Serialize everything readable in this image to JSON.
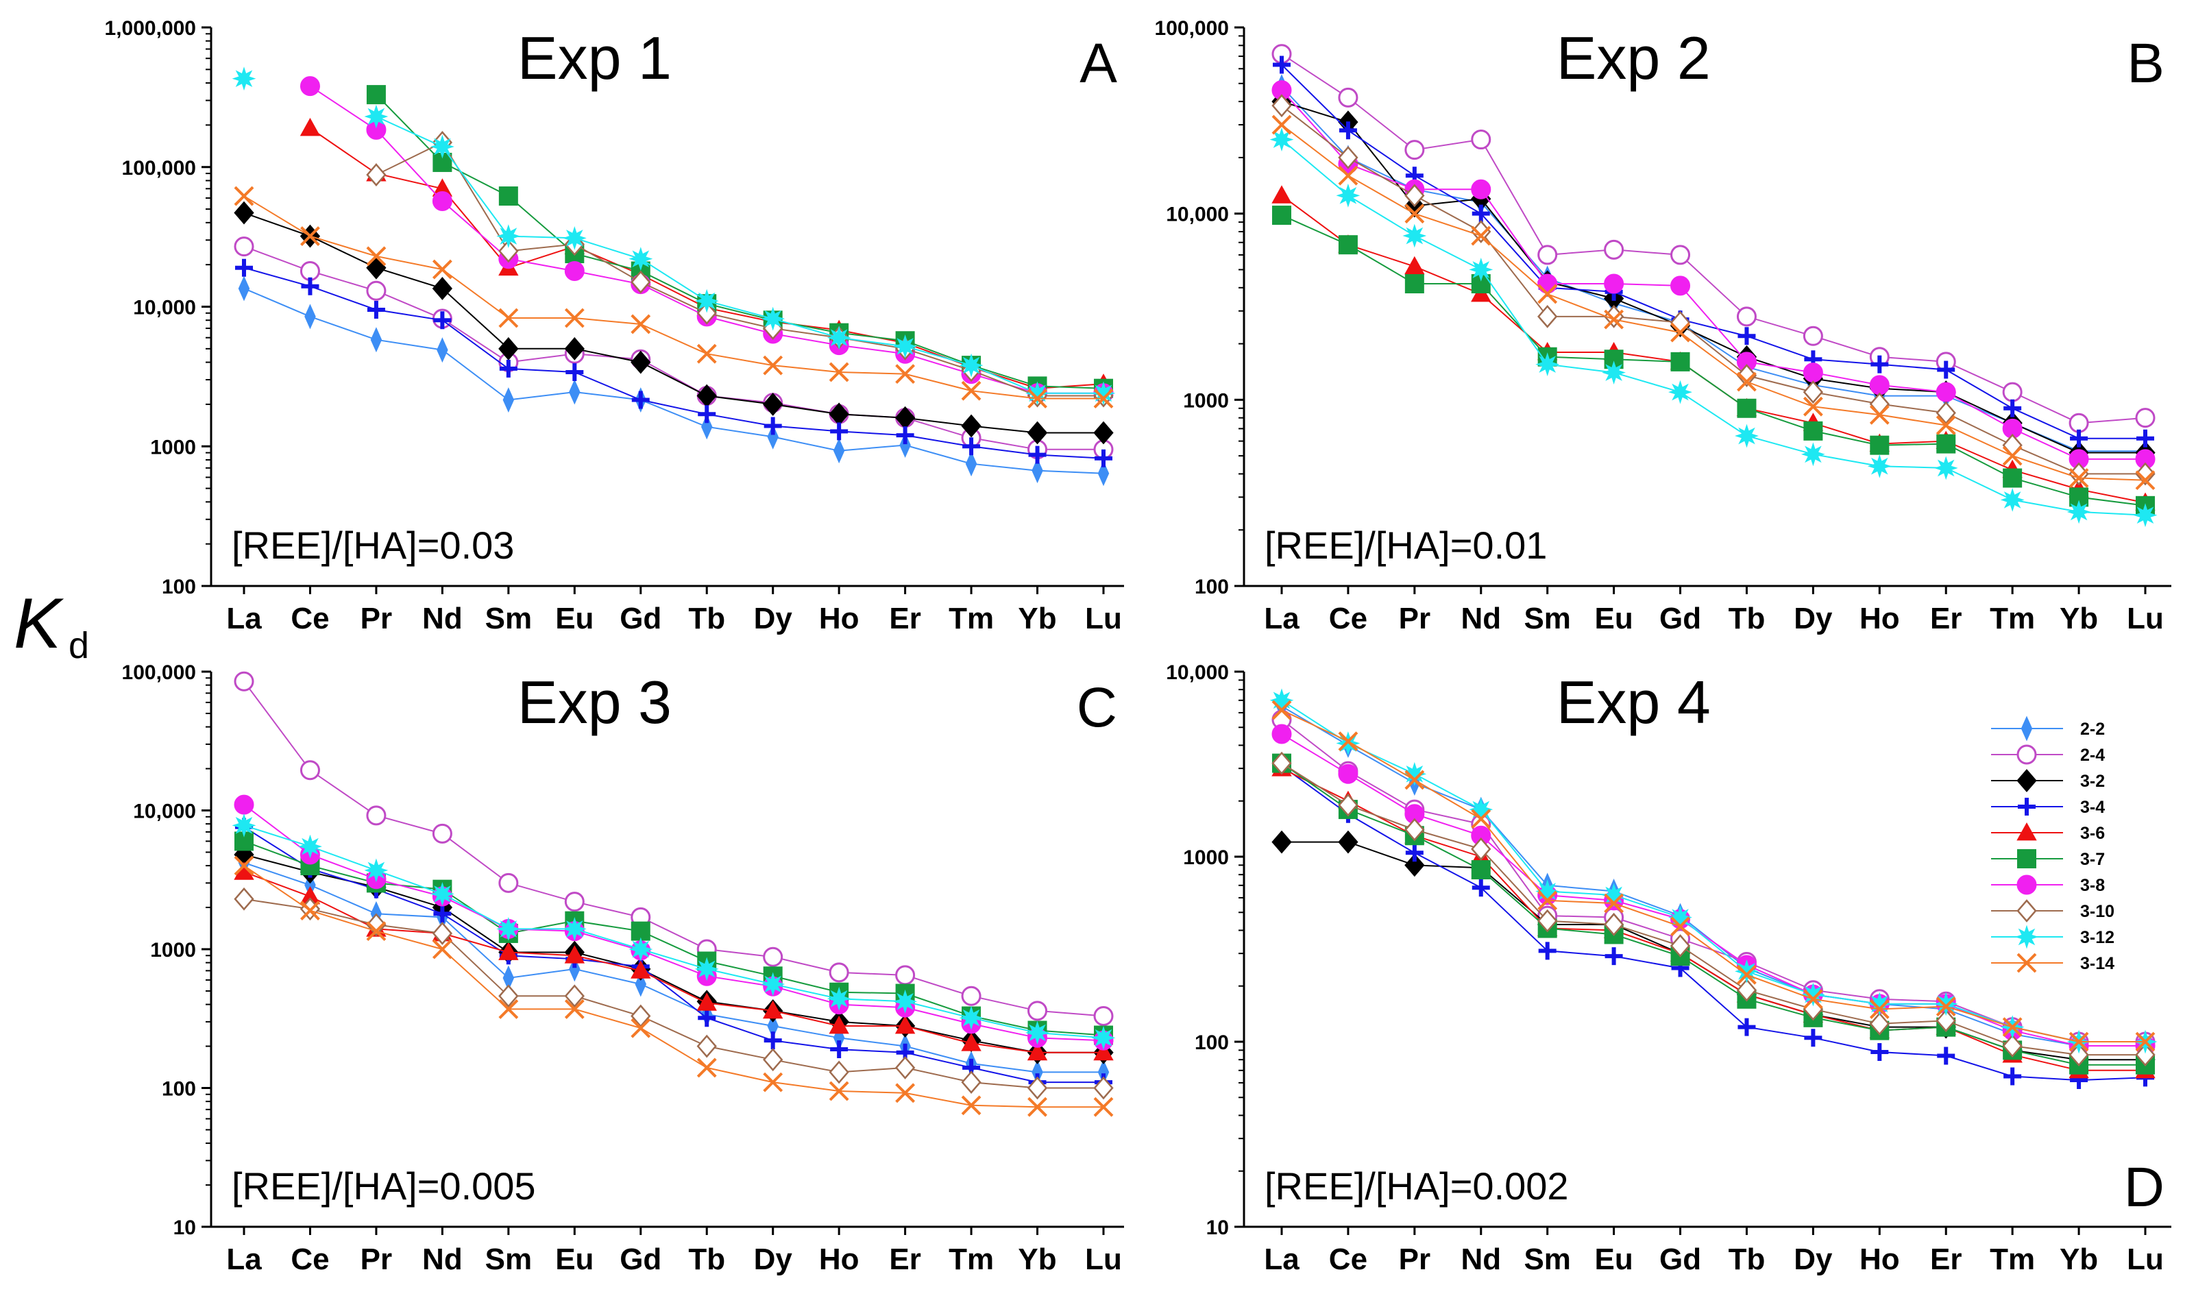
{
  "figure": {
    "ylabel": "K",
    "ylabel_sub": "d"
  },
  "legend": {
    "position": "right, inside panel D",
    "entries": [
      {
        "name": "2-2",
        "color": "#3d8ef5",
        "marker": "diamond-thin",
        "filled": true
      },
      {
        "name": "2-4",
        "color": "#c04ac6",
        "marker": "circle",
        "filled": false
      },
      {
        "name": "3-2",
        "color": "#000000",
        "marker": "diamond",
        "filled": true
      },
      {
        "name": "3-4",
        "color": "#1414e8",
        "marker": "plus",
        "filled": true
      },
      {
        "name": "3-6",
        "color": "#ee1111",
        "marker": "triangle",
        "filled": true
      },
      {
        "name": "3-7",
        "color": "#169b3e",
        "marker": "square",
        "filled": true
      },
      {
        "name": "3-8",
        "color": "#f020f0",
        "marker": "circle",
        "filled": true
      },
      {
        "name": "3-10",
        "color": "#9e6b4e",
        "marker": "diamond",
        "filled": false
      },
      {
        "name": "3-12",
        "color": "#1ee8f2",
        "marker": "star",
        "filled": true
      },
      {
        "name": "3-14",
        "color": "#f47a28",
        "marker": "x",
        "filled": true
      }
    ]
  },
  "chart_data": [
    {
      "type": "line",
      "scale": "log",
      "panel": "A",
      "title": "Exp 1",
      "letter": "A",
      "annotation": "[REE]/[HA]=0.03",
      "ylim": [
        100,
        1000000
      ],
      "yticks": [
        100,
        1000,
        10000,
        100000,
        1000000
      ],
      "ytick_labels": [
        "100",
        "1000",
        "10,000",
        "100,000",
        "1,000,000"
      ],
      "categories": [
        "La",
        "Ce",
        "Pr",
        "Nd",
        "Sm",
        "Eu",
        "Gd",
        "Tb",
        "Dy",
        "Ho",
        "Er",
        "Tm",
        "Yb",
        "Lu"
      ],
      "series": [
        {
          "name": "2-2",
          "values": [
            13500,
            8500,
            5800,
            4900,
            2150,
            2450,
            2150,
            1380,
            1170,
            930,
            1020,
            750,
            670,
            640
          ]
        },
        {
          "name": "2-4",
          "values": [
            27000,
            18000,
            13000,
            8200,
            4000,
            4600,
            4200,
            2300,
            2050,
            1700,
            1600,
            1150,
            950,
            950
          ]
        },
        {
          "name": "3-2",
          "values": [
            47000,
            32000,
            19000,
            13500,
            5000,
            5000,
            4000,
            2300,
            2000,
            1700,
            1600,
            1400,
            1250,
            1250
          ]
        },
        {
          "name": "3-4",
          "values": [
            19000,
            14000,
            9500,
            8000,
            3600,
            3400,
            2150,
            1700,
            1400,
            1280,
            1200,
            1000,
            870,
            820
          ]
        },
        {
          "name": "3-6",
          "values": [
            null,
            190000,
            90000,
            70000,
            19000,
            27000,
            17000,
            9800,
            7800,
            6800,
            5500,
            3700,
            2600,
            2800
          ]
        },
        {
          "name": "3-7",
          "values": [
            null,
            null,
            330000,
            108000,
            62000,
            24000,
            18000,
            10500,
            8000,
            6500,
            5700,
            3800,
            2700,
            2600
          ]
        },
        {
          "name": "3-8",
          "values": [
            null,
            380000,
            185000,
            57000,
            22000,
            18000,
            14500,
            8500,
            6400,
            5300,
            4600,
            3300,
            2400,
            2400
          ]
        },
        {
          "name": "3-10",
          "values": [
            null,
            null,
            88000,
            150000,
            25000,
            28000,
            15000,
            9000,
            7000,
            6000,
            5000,
            3500,
            2300,
            2300
          ]
        },
        {
          "name": "3-12",
          "values": [
            430000,
            null,
            230000,
            140000,
            32000,
            31000,
            22000,
            11000,
            8200,
            6000,
            5200,
            3800,
            2400,
            2400
          ]
        },
        {
          "name": "3-14",
          "values": [
            62000,
            32000,
            23000,
            18500,
            8300,
            8300,
            7500,
            4600,
            3800,
            3400,
            3300,
            2500,
            2200,
            2200
          ]
        }
      ]
    },
    {
      "type": "line",
      "scale": "log",
      "panel": "B",
      "title": "Exp 2",
      "letter": "B",
      "annotation": "[REE]/[HA]=0.01",
      "ylim": [
        100,
        100000
      ],
      "yticks": [
        100,
        1000,
        10000,
        100000
      ],
      "ytick_labels": [
        "100",
        "1000",
        "10,000",
        "100,000"
      ],
      "categories": [
        "La",
        "Ce",
        "Pr",
        "Nd",
        "Sm",
        "Eu",
        "Gd",
        "Tb",
        "Dy",
        "Ho",
        "Er",
        "Tm",
        "Yb",
        "Lu"
      ],
      "series": [
        {
          "name": "2-2",
          "values": [
            48000,
            20000,
            13500,
            11500,
            4500,
            3300,
            2600,
            1500,
            1200,
            1050,
            1050,
            750,
            530,
            530
          ]
        },
        {
          "name": "2-4",
          "values": [
            72000,
            42000,
            22000,
            25000,
            6000,
            6400,
            6000,
            2800,
            2200,
            1700,
            1600,
            1100,
            750,
            800
          ]
        },
        {
          "name": "3-2",
          "values": [
            40000,
            31000,
            11000,
            12000,
            4300,
            3500,
            2500,
            1700,
            1300,
            1150,
            1100,
            750,
            520,
            520
          ]
        },
        {
          "name": "3-4",
          "values": [
            63000,
            28000,
            16000,
            10000,
            4000,
            3800,
            2700,
            2200,
            1650,
            1550,
            1450,
            900,
            620,
            620
          ]
        },
        {
          "name": "3-6",
          "values": [
            12500,
            6800,
            5200,
            3700,
            1800,
            1800,
            1600,
            900,
            750,
            580,
            600,
            420,
            330,
            280
          ]
        },
        {
          "name": "3-7",
          "values": [
            9800,
            6800,
            4200,
            4200,
            1700,
            1650,
            1600,
            900,
            680,
            570,
            580,
            380,
            300,
            270
          ]
        },
        {
          "name": "3-8",
          "values": [
            46000,
            18500,
            13500,
            13500,
            4200,
            4200,
            4100,
            1600,
            1400,
            1200,
            1100,
            700,
            480,
            480
          ]
        },
        {
          "name": "3-10",
          "values": [
            38000,
            20000,
            12500,
            8000,
            2800,
            2800,
            2600,
            1350,
            1100,
            950,
            850,
            570,
            400,
            400
          ]
        },
        {
          "name": "3-12",
          "values": [
            25000,
            12500,
            7600,
            5000,
            1550,
            1400,
            1100,
            640,
            510,
            440,
            430,
            290,
            250,
            240
          ]
        },
        {
          "name": "3-14",
          "values": [
            30000,
            16000,
            10000,
            7600,
            3700,
            2700,
            2300,
            1250,
            920,
            830,
            730,
            500,
            380,
            370
          ]
        }
      ]
    },
    {
      "type": "line",
      "scale": "log",
      "panel": "C",
      "title": "Exp 3",
      "letter": "C",
      "annotation": "[REE]/[HA]=0.005",
      "ylim": [
        10,
        100000
      ],
      "yticks": [
        10,
        100,
        1000,
        10000,
        100000
      ],
      "ytick_labels": [
        "10",
        "100",
        "1000",
        "10,000",
        "100,000"
      ],
      "categories": [
        "La",
        "Ce",
        "Pr",
        "Nd",
        "Sm",
        "Eu",
        "Gd",
        "Tb",
        "Dy",
        "Ho",
        "Er",
        "Tm",
        "Yb",
        "Lu"
      ],
      "series": [
        {
          "name": "2-2",
          "values": [
            4200,
            2900,
            1800,
            1700,
            620,
            720,
            560,
            340,
            280,
            230,
            200,
            150,
            130,
            130
          ]
        },
        {
          "name": "2-4",
          "values": [
            85000,
            19500,
            9200,
            6800,
            3000,
            2200,
            1700,
            1000,
            880,
            680,
            650,
            460,
            360,
            330
          ]
        },
        {
          "name": "3-2",
          "values": [
            4800,
            3600,
            2800,
            2000,
            950,
            950,
            720,
            420,
            360,
            300,
            280,
            220,
            180,
            180
          ]
        },
        {
          "name": "3-4",
          "values": [
            7600,
            3800,
            2700,
            1800,
            900,
            850,
            750,
            320,
            220,
            190,
            180,
            140,
            110,
            110
          ]
        },
        {
          "name": "3-6",
          "values": [
            3600,
            2400,
            1400,
            1300,
            950,
            900,
            700,
            410,
            360,
            280,
            280,
            210,
            180,
            180
          ]
        },
        {
          "name": "3-7",
          "values": [
            6000,
            4000,
            3000,
            2700,
            1300,
            1600,
            1350,
            820,
            640,
            490,
            480,
            330,
            260,
            240
          ]
        },
        {
          "name": "3-8",
          "values": [
            11000,
            4800,
            3200,
            2400,
            1400,
            1350,
            980,
            640,
            540,
            400,
            380,
            290,
            230,
            220
          ]
        },
        {
          "name": "3-10",
          "values": [
            2300,
            1950,
            1500,
            1300,
            460,
            460,
            330,
            200,
            160,
            130,
            140,
            110,
            100,
            100
          ]
        },
        {
          "name": "3-12",
          "values": [
            7800,
            5500,
            3700,
            2500,
            1400,
            1400,
            1000,
            720,
            560,
            440,
            420,
            320,
            250,
            230
          ]
        },
        {
          "name": "3-14",
          "values": [
            4000,
            1900,
            1350,
            1000,
            370,
            370,
            270,
            140,
            110,
            95,
            92,
            75,
            73,
            73
          ]
        }
      ]
    },
    {
      "type": "line",
      "scale": "log",
      "panel": "D",
      "title": "Exp 4",
      "letter": "D",
      "annotation": "[REE]/[HA]=0.002",
      "ylim": [
        10,
        10000
      ],
      "yticks": [
        10,
        100,
        1000,
        10000
      ],
      "ytick_labels": [
        "10",
        "100",
        "1000",
        "10,000"
      ],
      "categories": [
        "La",
        "Ce",
        "Pr",
        "Nd",
        "Sm",
        "Eu",
        "Gd",
        "Tb",
        "Dy",
        "Ho",
        "Er",
        "Tm",
        "Yb",
        "Lu"
      ],
      "series": [
        {
          "name": "2-2",
          "values": [
            6500,
            4000,
            2500,
            1800,
            700,
            650,
            480,
            250,
            180,
            160,
            150,
            110,
            95,
            95
          ]
        },
        {
          "name": "2-4",
          "values": [
            5500,
            2900,
            1800,
            1500,
            480,
            470,
            360,
            270,
            190,
            170,
            165,
            120,
            100,
            100
          ]
        },
        {
          "name": "3-2",
          "values": [
            1200,
            1200,
            900,
            870,
            430,
            430,
            300,
            180,
            140,
            120,
            120,
            90,
            80,
            80
          ]
        },
        {
          "name": "3-4",
          "values": [
            3100,
            1700,
            1050,
            680,
            310,
            290,
            250,
            120,
            105,
            88,
            84,
            65,
            62,
            64
          ]
        },
        {
          "name": "3-6",
          "values": [
            3000,
            2000,
            1300,
            1000,
            410,
            400,
            300,
            180,
            140,
            115,
            120,
            85,
            70,
            70
          ]
        },
        {
          "name": "3-7",
          "values": [
            3200,
            1800,
            1300,
            850,
            410,
            380,
            290,
            170,
            135,
            115,
            120,
            90,
            75,
            75
          ]
        },
        {
          "name": "3-8",
          "values": [
            4600,
            2800,
            1700,
            1300,
            620,
            580,
            460,
            260,
            180,
            160,
            160,
            115,
            95,
            95
          ]
        },
        {
          "name": "3-10",
          "values": [
            3200,
            1900,
            1400,
            1100,
            450,
            430,
            330,
            190,
            150,
            125,
            130,
            95,
            85,
            85
          ]
        },
        {
          "name": "3-12",
          "values": [
            7000,
            4100,
            2800,
            1800,
            650,
            620,
            470,
            240,
            180,
            160,
            160,
            120,
            100,
            100
          ]
        },
        {
          "name": "3-14",
          "values": [
            6200,
            4200,
            2600,
            1600,
            580,
            560,
            420,
            230,
            170,
            150,
            155,
            120,
            100,
            100
          ]
        }
      ]
    }
  ]
}
